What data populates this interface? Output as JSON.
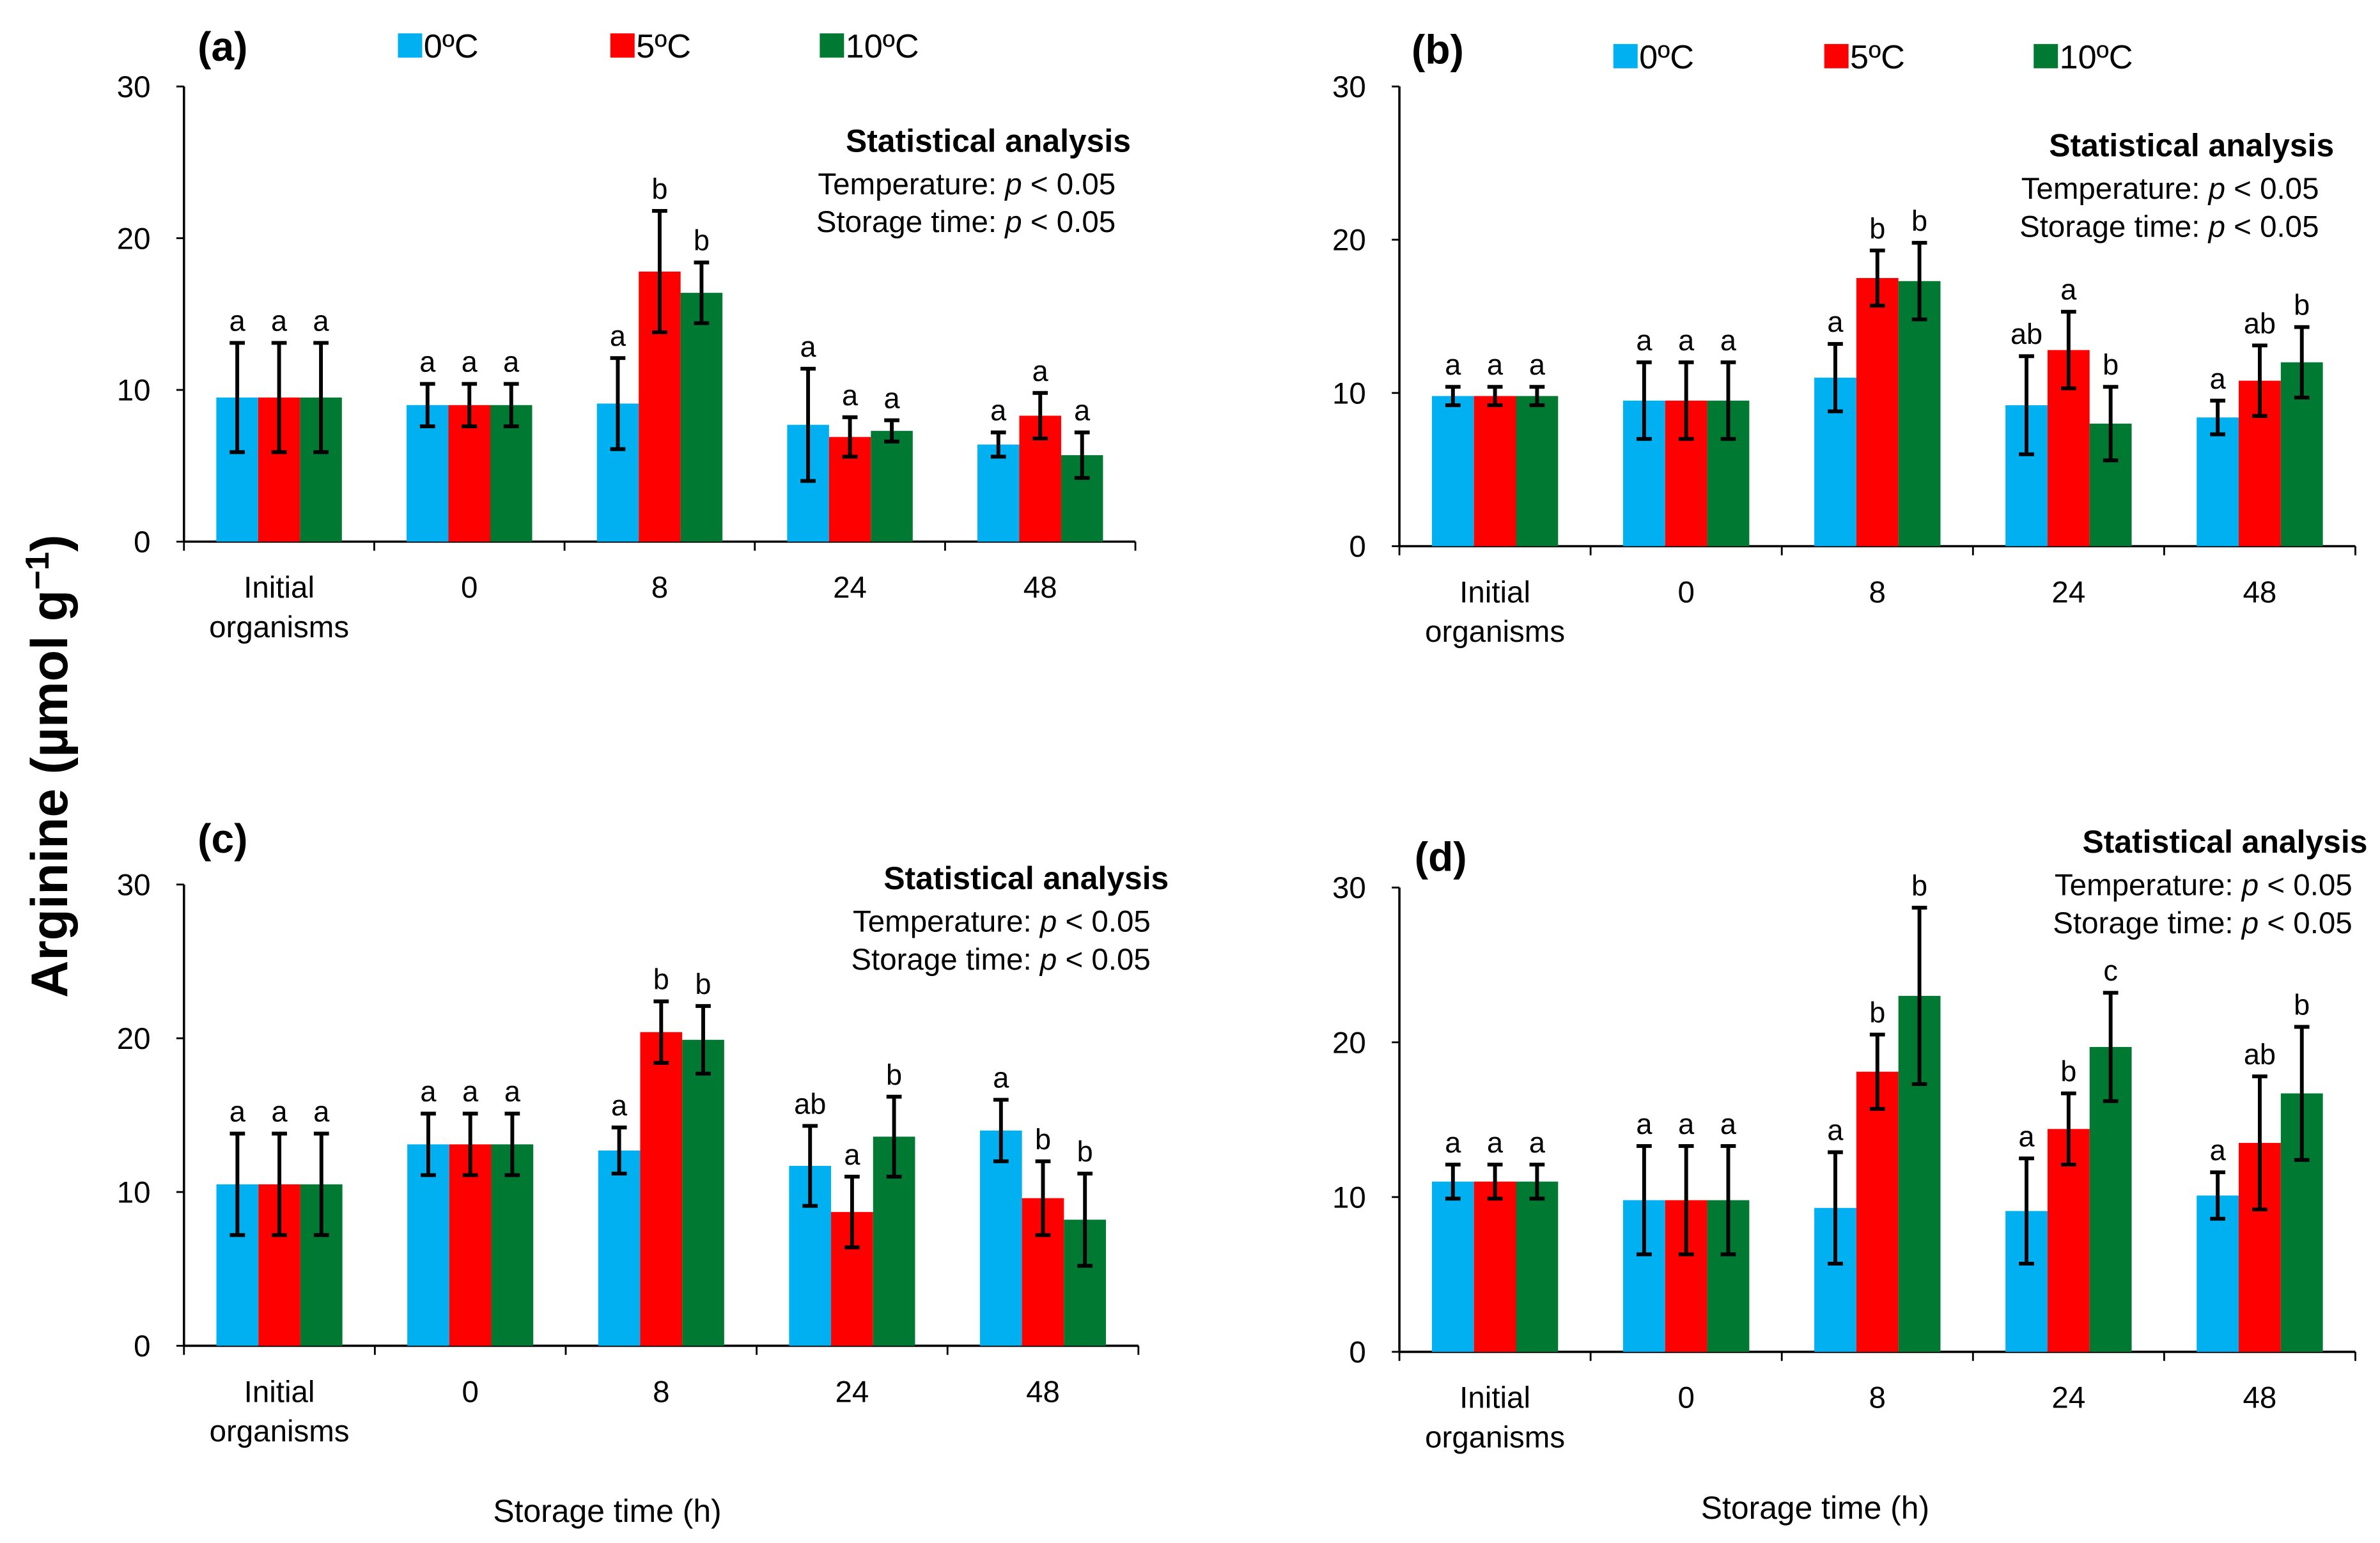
{
  "chart_data": {
    "type": "bar",
    "ylabel": "Arginine (µmol g−1)",
    "ylabel_parts": {
      "main": "Arginine (µmol g",
      "sup": "−1",
      "end": ")"
    },
    "xlabel": "Storage time (h)",
    "ylim": [
      0,
      30
    ],
    "yticks": [
      "0",
      "10",
      "20",
      "30"
    ],
    "categories": [
      "Initial organisms",
      "0",
      "8",
      "24",
      "48"
    ],
    "category_lines": [
      [
        "Initial",
        "organisms"
      ],
      [
        "0"
      ],
      [
        "8"
      ],
      [
        "24"
      ],
      [
        "48"
      ]
    ],
    "series_names": [
      "0ºC",
      "5ºC",
      "10ºC"
    ],
    "colors": {
      "0ºC": "#00b0f0",
      "5ºC": "#ff0000",
      "10ºC": "#007a33"
    },
    "stats": {
      "title": "Statistical analysis",
      "temperature_label": "Temperature: ",
      "storage_label": "Storage time: ",
      "p": "p",
      "value": " < 0.05"
    },
    "panels": [
      {
        "label": "(a)",
        "legend": true,
        "series": [
          {
            "name": "0ºC",
            "values": [
              9.5,
              9.0,
              9.1,
              7.7,
              6.4
            ],
            "errors": [
              3.6,
              1.4,
              3.0,
              3.7,
              0.8
            ],
            "letters": [
              "a",
              "a",
              "a",
              "a",
              "a"
            ]
          },
          {
            "name": "5ºC",
            "values": [
              9.5,
              9.0,
              17.8,
              6.9,
              8.3
            ],
            "errors": [
              3.6,
              1.4,
              4.0,
              1.3,
              1.5
            ],
            "letters": [
              "a",
              "a",
              "b",
              "a",
              "a"
            ]
          },
          {
            "name": "10ºC",
            "values": [
              9.5,
              9.0,
              16.4,
              7.3,
              5.7
            ],
            "errors": [
              3.6,
              1.4,
              2.0,
              0.7,
              1.5
            ],
            "letters": [
              "a",
              "a",
              "b",
              "a",
              "a"
            ]
          }
        ]
      },
      {
        "label": "(b)",
        "legend": true,
        "series": [
          {
            "name": "0ºC",
            "values": [
              9.8,
              9.5,
              11.0,
              9.2,
              8.4
            ],
            "errors": [
              0.6,
              2.5,
              2.2,
              3.2,
              1.1
            ],
            "letters": [
              "a",
              "a",
              "a",
              "ab",
              "a"
            ]
          },
          {
            "name": "5ºC",
            "values": [
              9.8,
              9.5,
              17.5,
              12.8,
              10.8
            ],
            "errors": [
              0.6,
              2.5,
              1.8,
              2.5,
              2.3
            ],
            "letters": [
              "a",
              "a",
              "b",
              "a",
              "ab"
            ]
          },
          {
            "name": "10ºC",
            "values": [
              9.8,
              9.5,
              17.3,
              8.0,
              12.0
            ],
            "errors": [
              0.6,
              2.5,
              2.5,
              2.4,
              2.3
            ],
            "letters": [
              "a",
              "a",
              "b",
              "b",
              "b"
            ]
          }
        ]
      },
      {
        "label": "(c)",
        "legend": false,
        "series": [
          {
            "name": "0ºC",
            "values": [
              10.5,
              13.1,
              12.7,
              11.7,
              14.0
            ],
            "errors": [
              3.3,
              2.0,
              1.5,
              2.6,
              2.0
            ],
            "letters": [
              "a",
              "a",
              "a",
              "ab",
              "a"
            ]
          },
          {
            "name": "5ºC",
            "values": [
              10.5,
              13.1,
              20.4,
              8.7,
              9.6
            ],
            "errors": [
              3.3,
              2.0,
              2.0,
              2.3,
              2.4
            ],
            "letters": [
              "a",
              "a",
              "b",
              "a",
              "b"
            ]
          },
          {
            "name": "10ºC",
            "values": [
              10.5,
              13.1,
              19.9,
              13.6,
              8.2
            ],
            "errors": [
              3.3,
              2.0,
              2.2,
              2.6,
              3.0
            ],
            "letters": [
              "a",
              "a",
              "b",
              "b",
              "b"
            ]
          }
        ]
      },
      {
        "label": "(d)",
        "legend": false,
        "series": [
          {
            "name": "0ºC",
            "values": [
              11.0,
              9.8,
              9.3,
              9.1,
              10.1
            ],
            "errors": [
              1.1,
              3.5,
              3.6,
              3.4,
              1.5
            ],
            "letters": [
              "a",
              "a",
              "a",
              "a",
              "a"
            ]
          },
          {
            "name": "5ºC",
            "values": [
              11.0,
              9.8,
              18.1,
              14.4,
              13.5
            ],
            "errors": [
              1.1,
              3.5,
              2.4,
              2.3,
              4.3
            ],
            "letters": [
              "a",
              "a",
              "b",
              "b",
              "ab"
            ]
          },
          {
            "name": "10ºC",
            "values": [
              11.0,
              9.8,
              23.0,
              19.7,
              16.7
            ],
            "errors": [
              1.1,
              3.5,
              5.7,
              3.5,
              4.3
            ],
            "letters": [
              "a",
              "a",
              "b",
              "c",
              "b"
            ]
          }
        ]
      }
    ]
  }
}
